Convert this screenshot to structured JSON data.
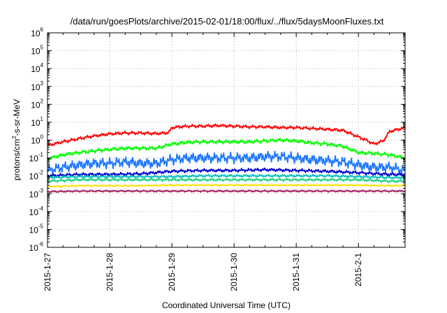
{
  "chart_data": {
    "type": "line",
    "title": "/data/run/goesPlots/archive/2015-02-01/18:00/flux/../flux/5daysMoonFluxes.txt",
    "xlabel": "Coordinated Universal Time (UTC)",
    "ylabel": "protons/cm2-s-sr-MeV",
    "ylabel_parts": [
      "protons/cm",
      "2",
      "-s-sr-MeV"
    ],
    "y_scale": "log",
    "ylim_exp": [
      -6,
      6
    ],
    "y_ticks": [
      {
        "base": "10",
        "exp": "-6"
      },
      {
        "base": "10",
        "exp": "-5"
      },
      {
        "base": "10",
        "exp": "-4"
      },
      {
        "base": "10",
        "exp": "-3"
      },
      {
        "base": "10",
        "exp": "-2"
      },
      {
        "base": "10",
        "exp": "-1"
      },
      {
        "base": "10",
        "exp": "0"
      },
      {
        "base": "10",
        "exp": "1"
      },
      {
        "base": "10",
        "exp": "2"
      },
      {
        "base": "10",
        "exp": "3"
      },
      {
        "base": "10",
        "exp": "4"
      },
      {
        "base": "10",
        "exp": "5"
      },
      {
        "base": "10",
        "exp": "6"
      }
    ],
    "x_ticks": [
      "2015-1-27",
      "2015-1-28",
      "2015-1-29",
      "2015-1-30",
      "2015-1-31",
      "2015-2-1"
    ],
    "xlim": [
      "2015-01-27T00:00",
      "2015-02-01T18:00"
    ],
    "grid": true,
    "series": [
      {
        "color": "#ff0000",
        "x": [
          0,
          0.25,
          0.5,
          0.75,
          1.0,
          1.25,
          1.5,
          1.75,
          1.95,
          2.0,
          2.25,
          2.5,
          2.75,
          3.0,
          3.25,
          3.5,
          3.75,
          4.0,
          4.25,
          4.5,
          4.75,
          5.0,
          5.15,
          5.25,
          5.4,
          5.5,
          5.75
        ],
        "y": [
          0.5,
          0.8,
          1.2,
          1.7,
          2.2,
          2.5,
          2.5,
          2.3,
          2.6,
          5,
          6,
          6,
          6.5,
          6,
          5.5,
          5.5,
          5,
          5,
          4.5,
          4,
          3.5,
          1.5,
          0.9,
          0.6,
          0.9,
          3,
          5
        ]
      },
      {
        "color": "#00ff00",
        "x": [
          0,
          0.25,
          0.5,
          0.75,
          1.0,
          1.25,
          1.5,
          1.75,
          2.0,
          2.25,
          2.5,
          2.75,
          3.0,
          3.25,
          3.5,
          3.75,
          4.0,
          4.25,
          4.5,
          4.75,
          5.0,
          5.25,
          5.5,
          5.75
        ],
        "y": [
          0.09,
          0.15,
          0.2,
          0.25,
          0.3,
          0.35,
          0.35,
          0.35,
          0.6,
          0.75,
          0.8,
          0.8,
          0.8,
          0.8,
          0.9,
          1.0,
          0.9,
          0.7,
          0.6,
          0.45,
          0.2,
          0.18,
          0.15,
          0.1
        ]
      },
      {
        "color": "#1e78ff",
        "x": [
          0,
          0.25,
          0.5,
          0.75,
          1.0,
          1.25,
          1.5,
          1.75,
          2.0,
          2.25,
          2.5,
          2.75,
          3.0,
          3.25,
          3.5,
          3.75,
          4.0,
          4.25,
          4.5,
          4.75,
          5.0,
          5.25,
          5.5,
          5.75
        ],
        "y": [
          0.02,
          0.03,
          0.04,
          0.05,
          0.05,
          0.06,
          0.05,
          0.05,
          0.08,
          0.1,
          0.1,
          0.1,
          0.1,
          0.1,
          0.12,
          0.12,
          0.1,
          0.08,
          0.07,
          0.06,
          0.04,
          0.03,
          0.03,
          0.02
        ]
      },
      {
        "color": "#0000cc",
        "x": [
          0,
          0.5,
          1.0,
          1.5,
          2.0,
          2.5,
          3.0,
          3.5,
          4.0,
          4.5,
          5.0,
          5.5,
          5.75
        ],
        "y": [
          0.01,
          0.012,
          0.012,
          0.013,
          0.018,
          0.02,
          0.02,
          0.022,
          0.02,
          0.018,
          0.015,
          0.012,
          0.012
        ]
      },
      {
        "color": "#00c0c0",
        "x": [
          0,
          0.5,
          1.0,
          1.5,
          2.0,
          2.5,
          3.0,
          3.5,
          4.0,
          4.5,
          5.0,
          5.5,
          5.75
        ],
        "y": [
          0.008,
          0.009,
          0.009,
          0.009,
          0.009,
          0.01,
          0.01,
          0.01,
          0.01,
          0.01,
          0.009,
          0.008,
          0.008
        ]
      },
      {
        "color": "#20d080",
        "x": [
          0,
          0.5,
          1.0,
          1.5,
          2.0,
          2.5,
          3.0,
          3.5,
          4.0,
          4.5,
          5.0,
          5.5,
          5.75
        ],
        "y": [
          0.005,
          0.006,
          0.006,
          0.006,
          0.006,
          0.006,
          0.006,
          0.006,
          0.006,
          0.006,
          0.006,
          0.005,
          0.005
        ]
      },
      {
        "color": "#ffe000",
        "x": [
          0,
          0.5,
          1.0,
          1.5,
          2.0,
          2.5,
          3.0,
          3.5,
          4.0,
          4.5,
          5.0,
          5.5,
          5.75
        ],
        "y": [
          0.0025,
          0.0028,
          0.0028,
          0.0028,
          0.003,
          0.003,
          0.003,
          0.003,
          0.003,
          0.003,
          0.003,
          0.0028,
          0.0028
        ]
      },
      {
        "color": "#a02060",
        "x": [
          0,
          0.5,
          1.0,
          1.5,
          2.0,
          2.5,
          3.0,
          3.5,
          4.0,
          4.5,
          5.0,
          5.5,
          5.75
        ],
        "y": [
          0.0013,
          0.0014,
          0.0014,
          0.0014,
          0.0014,
          0.0014,
          0.0014,
          0.0014,
          0.0014,
          0.0014,
          0.0014,
          0.0014,
          0.0014
        ]
      }
    ]
  }
}
